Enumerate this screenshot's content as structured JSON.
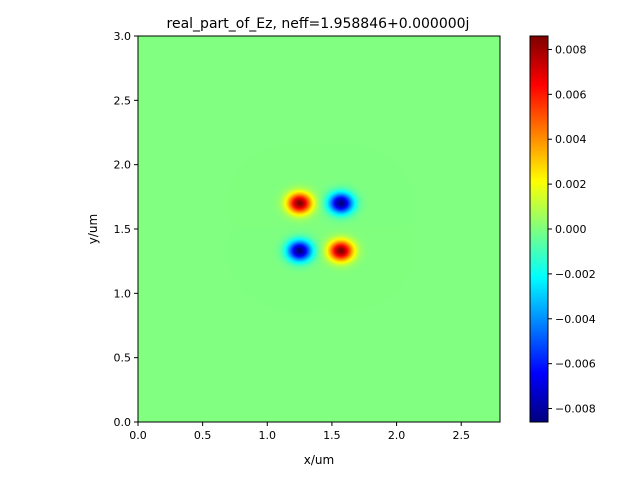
{
  "chart_data": {
    "type": "heatmap",
    "title": "real_part_of_Ez, neff=1.958846+0.000000j",
    "xlabel": "x/um",
    "ylabel": "y/um",
    "xlim": [
      0.0,
      2.8
    ],
    "ylim": [
      0.0,
      3.0
    ],
    "x_ticks": [
      0.0,
      0.5,
      1.0,
      1.5,
      2.0,
      2.5
    ],
    "x_tick_labels": [
      "0.0",
      "0.5",
      "1.0",
      "1.5",
      "2.0",
      "2.5"
    ],
    "y_ticks": [
      0.0,
      0.5,
      1.0,
      1.5,
      2.0,
      2.5,
      3.0
    ],
    "y_tick_labels": [
      "0.0",
      "0.5",
      "1.0",
      "1.5",
      "2.0",
      "2.5",
      "3.0"
    ],
    "colormap": "jet",
    "colorbar": {
      "vmin": -0.0086,
      "vmax": 0.0086,
      "ticks": [
        -0.008,
        -0.006,
        -0.004,
        -0.002,
        0.0,
        0.002,
        0.004,
        0.006,
        0.008
      ],
      "tick_labels": [
        "−0.008",
        "−0.006",
        "−0.004",
        "−0.002",
        "0.000",
        "0.002",
        "0.004",
        "0.006",
        "0.008"
      ]
    },
    "lobes": [
      {
        "x": 1.25,
        "y": 1.7,
        "value": 0.0086
      },
      {
        "x": 1.57,
        "y": 1.7,
        "value": -0.0086
      },
      {
        "x": 1.25,
        "y": 1.33,
        "value": -0.0086
      },
      {
        "x": 1.57,
        "y": 1.33,
        "value": 0.0086
      }
    ],
    "lobe_sigma_x": 0.065,
    "lobe_sigma_y": 0.055,
    "grid": false,
    "legend": "none"
  }
}
